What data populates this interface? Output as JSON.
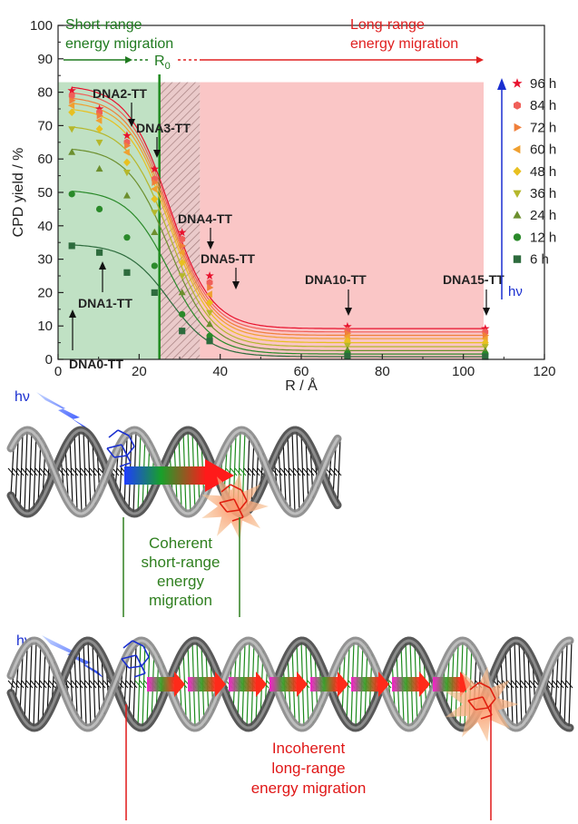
{
  "chart_data": {
    "type": "scatter",
    "xlabel": "R / Å",
    "ylabel": "CPD yield / %",
    "xlim": [
      0,
      120
    ],
    "ylim": [
      0,
      100
    ],
    "x_ticks": [
      "0",
      "20",
      "40",
      "60",
      "80",
      "100",
      "120"
    ],
    "y_ticks": [
      "0",
      "10",
      "20",
      "30",
      "40",
      "50",
      "60",
      "70",
      "80",
      "90",
      "100"
    ],
    "x": [
      3.4,
      10.2,
      17.0,
      23.8,
      30.6,
      37.4,
      71.4,
      105.4
    ],
    "series": [
      {
        "name": "96 h",
        "color": "#e8112d",
        "marker": "star",
        "values": [
          80.5,
          75.0,
          67.0,
          57.0,
          38.0,
          25.0,
          9.8,
          9.2
        ]
      },
      {
        "name": "84 h",
        "color": "#f05f59",
        "marker": "hexagon",
        "values": [
          79.0,
          74.0,
          65.0,
          54.0,
          36.0,
          23.0,
          8.8,
          8.2
        ]
      },
      {
        "name": "72 h",
        "color": "#f07f3a",
        "marker": "triangle-right",
        "values": [
          77.5,
          73.0,
          64.0,
          53.0,
          34.0,
          21.5,
          7.8,
          7.2
        ]
      },
      {
        "name": "60 h",
        "color": "#f0a030",
        "marker": "triangle-left",
        "values": [
          76.0,
          71.5,
          62.0,
          51.0,
          32.0,
          19.5,
          6.8,
          6.2
        ]
      },
      {
        "name": "48 h",
        "color": "#e8c020",
        "marker": "diamond",
        "values": [
          74.0,
          69.0,
          59.0,
          48.0,
          29.0,
          17.0,
          5.5,
          5.0
        ]
      },
      {
        "name": "36 h",
        "color": "#b5b72b",
        "marker": "triangle-down",
        "values": [
          69.0,
          65.0,
          56.0,
          44.0,
          25.0,
          14.0,
          4.2,
          3.8
        ]
      },
      {
        "name": "24 h",
        "color": "#6c8f2e",
        "marker": "triangle-up",
        "values": [
          62.0,
          57.0,
          49.0,
          38.0,
          20.0,
          10.5,
          2.8,
          2.6
        ]
      },
      {
        "name": "12 h",
        "color": "#2a8a2a",
        "marker": "circle",
        "values": [
          49.5,
          45.0,
          36.5,
          28.0,
          13.5,
          7.0,
          1.8,
          1.6
        ]
      },
      {
        "name": "6 h",
        "color": "#2d6b3d",
        "marker": "square",
        "values": [
          34.0,
          32.0,
          26.0,
          20.0,
          8.5,
          5.5,
          1.0,
          0.8
        ]
      }
    ],
    "regions": [
      {
        "name": "short-range",
        "from": 0,
        "to": 25,
        "color": "#2e9a3a"
      },
      {
        "name": "hatched",
        "from": 25,
        "to": 35,
        "color": "#c8a0a0"
      },
      {
        "name": "long-range",
        "from": 35,
        "to": 105,
        "color": "#f7a8a8"
      }
    ],
    "r0_x": 25,
    "region_top": 83,
    "legend_position": "right",
    "hv_label": "hν"
  },
  "labels": {
    "short_range_1": "Short-range",
    "short_range_2": "energy migration",
    "long_range_1": "Long-range",
    "long_range_2": "energy migration",
    "r0": "R",
    "r0_sub": "0",
    "dna0": "DNA0-TT",
    "dna1": "DNA1-TT",
    "dna2": "DNA2-TT",
    "dna3": "DNA3-TT",
    "dna4": "DNA4-TT",
    "dna5": "DNA5-TT",
    "dna10": "DNA10-TT",
    "dna15": "DNA15-TT"
  },
  "illustration": {
    "hv_top": "hν",
    "hv_bottom": "hν",
    "coherent_1": "Coherent",
    "coherent_2": "short-range",
    "coherent_3": "energy",
    "coherent_4": "migration",
    "incoherent_1": "Incoherent",
    "incoherent_2": "long-range",
    "incoherent_3": "energy migration",
    "green_text": "#2f7f1f",
    "red_text": "#e01818",
    "blue_text": "#1a2fd0"
  }
}
